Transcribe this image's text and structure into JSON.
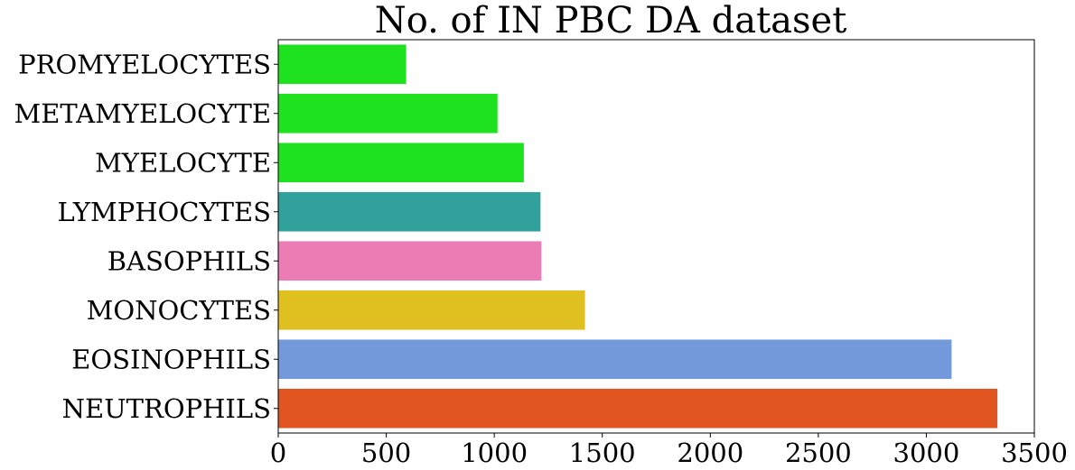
{
  "chart_data": {
    "type": "bar",
    "orientation": "horizontal",
    "title": "No. of IN PBC DA dataset",
    "xlabel": "",
    "ylabel": "",
    "xlim": [
      0,
      3500
    ],
    "xticks": [
      0,
      500,
      1000,
      1500,
      2000,
      2500,
      3000,
      3500
    ],
    "grid": false,
    "categories": [
      "PROMYELOCYTES",
      "METAMYELOCYTE",
      "MYELOCYTE",
      "LYMPHOCYTES",
      "BASOPHILS",
      "MONOCYTES",
      "EOSINOPHILS",
      "NEUTROPHILS"
    ],
    "values": [
      592,
      1015,
      1137,
      1214,
      1218,
      1420,
      3117,
      3329
    ],
    "colors": [
      "#1fe21f",
      "#1fe21f",
      "#1fe21f",
      "#31a29b",
      "#ec7cb4",
      "#dfc020",
      "#7399da",
      "#e05520"
    ]
  }
}
